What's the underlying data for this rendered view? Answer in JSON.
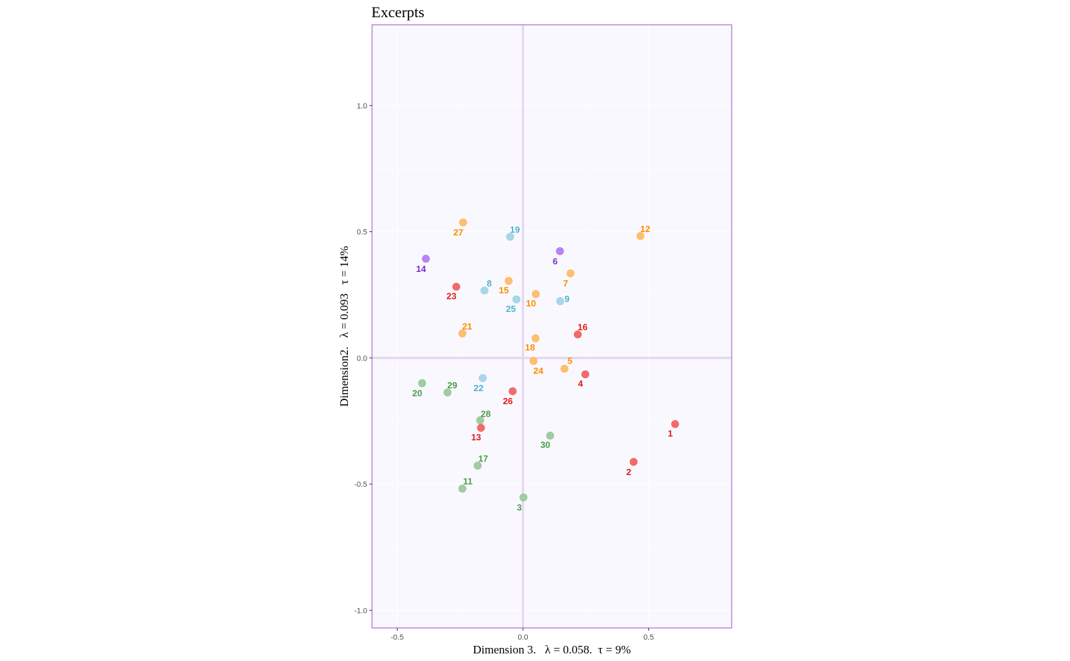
{
  "chart_data": {
    "type": "scatter",
    "title": "Excerpts",
    "xlabel": "Dimension 3.   λ = 0.058.  τ = 9%",
    "ylabel": "Dimension2.   λ = 0.093   τ = 14%",
    "xlim": [
      -0.6,
      0.83
    ],
    "ylim": [
      -1.07,
      1.32
    ],
    "xticks": [
      -0.5,
      0.0,
      0.5
    ],
    "xtick_labels": [
      "-0.5",
      "0.0",
      "0.5"
    ],
    "yticks": [
      -1.0,
      -0.5,
      0.0,
      0.5,
      1.0
    ],
    "ytick_labels": [
      "-1.0",
      "-0.5",
      "0.0",
      "0.5",
      "1.0"
    ],
    "grid": true,
    "colors": {
      "red_point": "#f26b6b",
      "red_label": "#e41a1c",
      "orange_point": "#fdbf6f",
      "orange_label": "#ff8c00",
      "blue_point": "#a6d8e8",
      "blue_label": "#4fb3cf",
      "green_point": "#a1cca1",
      "green_label": "#4a9e4a",
      "purple_point": "#b984f0",
      "purple_label": "#7b2fc9",
      "panel_bg": "#f9f8fe",
      "panel_border": "#9b4fc7",
      "zero_line": "#e6d3f2",
      "grid_line": "#ffffff"
    },
    "points": [
      {
        "label": "1",
        "x": 0.605,
        "y": -0.262,
        "group": "red"
      },
      {
        "label": "2",
        "x": 0.44,
        "y": -0.412,
        "group": "red"
      },
      {
        "label": "3",
        "x": 0.002,
        "y": -0.553,
        "group": "green"
      },
      {
        "label": "4",
        "x": 0.248,
        "y": -0.065,
        "group": "red"
      },
      {
        "label": "5",
        "x": 0.165,
        "y": -0.043,
        "group": "orange"
      },
      {
        "label": "6",
        "x": 0.147,
        "y": 0.423,
        "group": "purple"
      },
      {
        "label": "7",
        "x": 0.189,
        "y": 0.335,
        "group": "orange"
      },
      {
        "label": "8",
        "x": -0.153,
        "y": 0.267,
        "group": "blue"
      },
      {
        "label": "9",
        "x": 0.148,
        "y": 0.225,
        "group": "blue"
      },
      {
        "label": "10",
        "x": 0.051,
        "y": 0.253,
        "group": "orange"
      },
      {
        "label": "11",
        "x": -0.241,
        "y": -0.518,
        "group": "green"
      },
      {
        "label": "12",
        "x": 0.467,
        "y": 0.483,
        "group": "orange"
      },
      {
        "label": "13",
        "x": -0.167,
        "y": -0.277,
        "group": "red"
      },
      {
        "label": "14",
        "x": -0.386,
        "y": 0.393,
        "group": "purple"
      },
      {
        "label": "15",
        "x": -0.057,
        "y": 0.305,
        "group": "orange"
      },
      {
        "label": "16",
        "x": 0.218,
        "y": 0.093,
        "group": "red"
      },
      {
        "label": "17",
        "x": -0.18,
        "y": -0.427,
        "group": "green"
      },
      {
        "label": "18",
        "x": 0.05,
        "y": 0.078,
        "group": "orange"
      },
      {
        "label": "19",
        "x": -0.051,
        "y": 0.48,
        "group": "blue"
      },
      {
        "label": "20",
        "x": -0.401,
        "y": -0.1,
        "group": "green"
      },
      {
        "label": "21",
        "x": -0.241,
        "y": 0.097,
        "group": "orange"
      },
      {
        "label": "22",
        "x": -0.16,
        "y": -0.08,
        "group": "blue"
      },
      {
        "label": "23",
        "x": -0.265,
        "y": 0.282,
        "group": "red"
      },
      {
        "label": "24",
        "x": 0.042,
        "y": -0.012,
        "group": "orange"
      },
      {
        "label": "25",
        "x": -0.026,
        "y": 0.232,
        "group": "blue"
      },
      {
        "label": "26",
        "x": -0.041,
        "y": -0.132,
        "group": "red"
      },
      {
        "label": "27",
        "x": -0.238,
        "y": 0.537,
        "group": "orange"
      },
      {
        "label": "28",
        "x": -0.17,
        "y": -0.247,
        "group": "green"
      },
      {
        "label": "29",
        "x": -0.3,
        "y": -0.137,
        "group": "green"
      },
      {
        "label": "30",
        "x": 0.108,
        "y": -0.308,
        "group": "green"
      }
    ]
  }
}
